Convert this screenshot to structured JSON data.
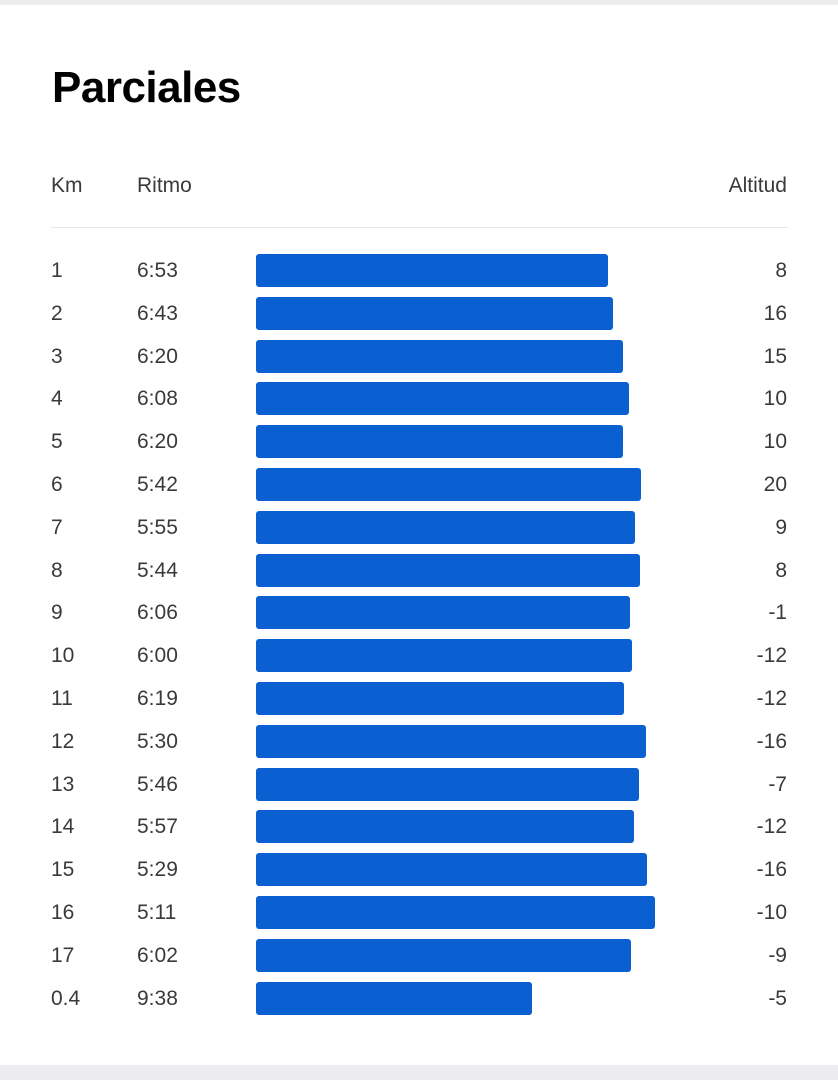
{
  "title": "Parciales",
  "headers": {
    "km": "Km",
    "pace": "Ritmo",
    "elevation": "Altitud"
  },
  "colors": {
    "bar": "#0a5fd1",
    "text": "#3a3a3c",
    "title": "#000000"
  },
  "splits": [
    {
      "km": "1",
      "pace": "6:53",
      "elevation": "8"
    },
    {
      "km": "2",
      "pace": "6:43",
      "elevation": "16"
    },
    {
      "km": "3",
      "pace": "6:20",
      "elevation": "15"
    },
    {
      "km": "4",
      "pace": "6:08",
      "elevation": "10"
    },
    {
      "km": "5",
      "pace": "6:20",
      "elevation": "10"
    },
    {
      "km": "6",
      "pace": "5:42",
      "elevation": "20"
    },
    {
      "km": "7",
      "pace": "5:55",
      "elevation": "9"
    },
    {
      "km": "8",
      "pace": "5:44",
      "elevation": "8"
    },
    {
      "km": "9",
      "pace": "6:06",
      "elevation": "-1"
    },
    {
      "km": "10",
      "pace": "6:00",
      "elevation": "-12"
    },
    {
      "km": "11",
      "pace": "6:19",
      "elevation": "-12"
    },
    {
      "km": "12",
      "pace": "5:30",
      "elevation": "-16"
    },
    {
      "km": "13",
      "pace": "5:46",
      "elevation": "-7"
    },
    {
      "km": "14",
      "pace": "5:57",
      "elevation": "-12"
    },
    {
      "km": "15",
      "pace": "5:29",
      "elevation": "-16"
    },
    {
      "km": "16",
      "pace": "5:11",
      "elevation": "-10"
    },
    {
      "km": "17",
      "pace": "6:02",
      "elevation": "-9"
    },
    {
      "km": "0.4",
      "pace": "9:38",
      "elevation": "-5"
    }
  ]
}
